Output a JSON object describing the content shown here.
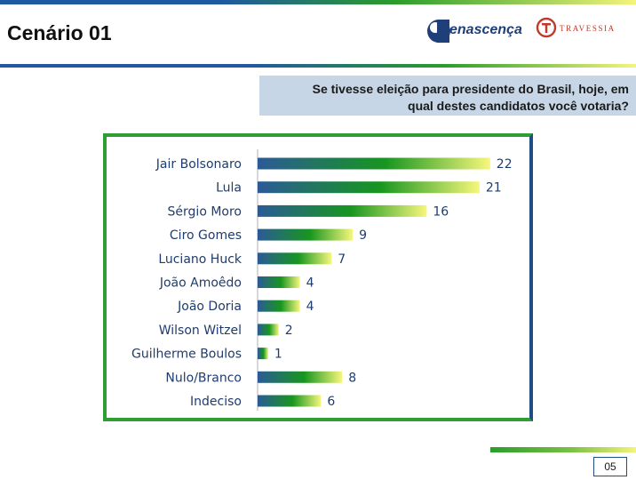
{
  "header": {
    "title": "Cenário 01",
    "logo_renascenca_text": "enascença",
    "logo_travessia_text": "TRAVESSIA"
  },
  "question": {
    "line1": "Se tivesse eleição para presidente do Brasil, hoje, em",
    "line2": "qual destes candidatos você votaria?"
  },
  "colors": {
    "bar_start": "#2b5a97",
    "bar_mid": "#17961f",
    "bar_end": "#f6f77b",
    "frame_green": "#2e9e32",
    "frame_blue": "#1f4e86",
    "label_text": "#1f3c6e"
  },
  "chart_data": {
    "type": "bar",
    "orientation": "horizontal",
    "categories": [
      "Jair Bolsonaro",
      "Lula",
      "Sérgio Moro",
      "Ciro Gomes",
      "Luciano Huck",
      "João Amoêdo",
      "João Doria",
      "Wilson Witzel",
      "Guilherme Boulos",
      "Nulo/Branco",
      "Indeciso"
    ],
    "values": [
      22,
      21,
      16,
      9,
      7,
      4,
      4,
      2,
      1,
      8,
      6
    ],
    "title": "",
    "xlabel": "",
    "ylabel": "",
    "grid": false,
    "legend": "none"
  },
  "footer": {
    "page_number": "05"
  }
}
